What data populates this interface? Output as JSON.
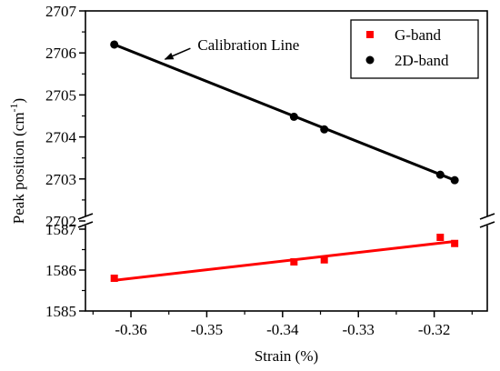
{
  "chart_data": {
    "type": "scatter",
    "title": "",
    "xlabel": "Strain (%)",
    "ylabel_main": "Peak position (cm",
    "ylabel_sup": "-1",
    "ylabel_close": ")",
    "xlim": [
      -0.366,
      -0.313
    ],
    "x_ticks": [
      -0.36,
      -0.35,
      -0.34,
      -0.33,
      -0.32
    ],
    "x_tick_labels": [
      "-0.36",
      "-0.35",
      "-0.34",
      "-0.33",
      "-0.32"
    ],
    "broken_y_axis": true,
    "y_segments": {
      "upper": {
        "ylim": [
          2702,
          2707
        ],
        "ticks": [
          2702,
          2703,
          2704,
          2705,
          2706,
          2707
        ],
        "tick_labels": [
          "2702",
          "2703",
          "2704",
          "2705",
          "2706",
          "2707"
        ]
      },
      "lower": {
        "ylim": [
          1585,
          1587.2
        ],
        "ticks": [
          1585,
          1586,
          1587
        ],
        "tick_labels": [
          "1585",
          "1586",
          "1587"
        ]
      }
    },
    "legend_position": "top-right",
    "series": [
      {
        "name": "G-band",
        "color": "#ff0000",
        "marker": "square",
        "segment": "lower",
        "x": [
          -0.3622,
          -0.3385,
          -0.3345,
          -0.3192,
          -0.3173
        ],
        "y": [
          1585.8,
          1586.2,
          1586.25,
          1586.8,
          1586.65
        ],
        "fit": {
          "x": [
            -0.3622,
            -0.3173
          ],
          "y": [
            1585.75,
            1586.7
          ]
        }
      },
      {
        "name": "2D-band",
        "color": "#000000",
        "marker": "circle",
        "segment": "upper",
        "x": [
          -0.3622,
          -0.3385,
          -0.3345,
          -0.3192,
          -0.3173
        ],
        "y": [
          2706.2,
          2704.48,
          2704.18,
          2703.1,
          2702.97
        ],
        "fit": {
          "x": [
            -0.3622,
            -0.3173
          ],
          "y": [
            2706.2,
            2702.97
          ]
        }
      }
    ],
    "annotations": [
      {
        "text": "Calibration Line",
        "points_to": {
          "x": -0.3555,
          "y": 2705.85
        },
        "anchor": {
          "x": -0.3512,
          "y": 2706.0
        }
      }
    ]
  }
}
